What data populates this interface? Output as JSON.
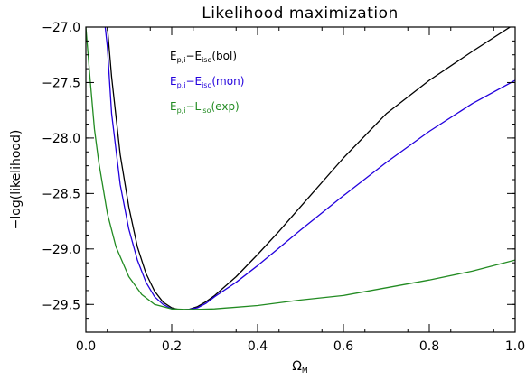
{
  "chart_data": {
    "type": "line",
    "title": "Likelihood maximization",
    "xlabel": "Ω",
    "xlabel_sub": "M",
    "ylabel": "−log(likelihood)",
    "xlim": [
      0.0,
      1.0
    ],
    "ylim": [
      -29.75,
      -27.0
    ],
    "xticks": [
      "0.0",
      "0.2",
      "0.4",
      "0.6",
      "0.8",
      "1.0"
    ],
    "yticks": [
      "−27.0",
      "−27.5",
      "−28.0",
      "−28.5",
      "−29.0",
      "−29.5"
    ],
    "grid": false,
    "legend_position": "top-left",
    "series": [
      {
        "name": "E_p,i − E_iso(bol)",
        "legend": {
          "base1": "E",
          "sub1": "p,i",
          "mid": "−E",
          "sub2": "iso",
          "tail": "(bol)"
        },
        "color": "#000000",
        "x": [
          0.05,
          0.06,
          0.08,
          0.1,
          0.12,
          0.14,
          0.16,
          0.18,
          0.2,
          0.22,
          0.24,
          0.26,
          0.28,
          0.3,
          0.35,
          0.4,
          0.45,
          0.5,
          0.6,
          0.7,
          0.8,
          0.9,
          1.0
        ],
        "y": [
          -27.0,
          -27.45,
          -28.15,
          -28.62,
          -28.98,
          -29.22,
          -29.38,
          -29.48,
          -29.53,
          -29.55,
          -29.545,
          -29.52,
          -29.475,
          -29.42,
          -29.25,
          -29.05,
          -28.84,
          -28.62,
          -28.18,
          -27.78,
          -27.48,
          -27.22,
          -26.97
        ]
      },
      {
        "name": "E_p,i − E_iso(mon)",
        "legend": {
          "base1": "E",
          "sub1": "p,i",
          "mid": "−E",
          "sub2": "iso",
          "tail": "(mon)"
        },
        "color": "#2200dd",
        "x": [
          0.045,
          0.05,
          0.06,
          0.08,
          0.1,
          0.12,
          0.14,
          0.16,
          0.18,
          0.2,
          0.22,
          0.24,
          0.26,
          0.28,
          0.3,
          0.35,
          0.4,
          0.45,
          0.5,
          0.6,
          0.7,
          0.8,
          0.9,
          1.0
        ],
        "y": [
          -27.0,
          -27.18,
          -27.78,
          -28.42,
          -28.82,
          -29.1,
          -29.3,
          -29.43,
          -29.5,
          -29.54,
          -29.55,
          -29.545,
          -29.53,
          -29.49,
          -29.43,
          -29.3,
          -29.15,
          -28.99,
          -28.83,
          -28.52,
          -28.22,
          -27.94,
          -27.69,
          -27.48
        ]
      },
      {
        "name": "E_p,i − L_iso(exp)",
        "legend": {
          "base1": "E",
          "sub1": "p,i",
          "mid": "−L",
          "sub2": "iso",
          "tail": "(exp)"
        },
        "color": "#228b22",
        "x": [
          0.0,
          0.01,
          0.02,
          0.03,
          0.05,
          0.07,
          0.1,
          0.13,
          0.16,
          0.2,
          0.23,
          0.26,
          0.3,
          0.4,
          0.5,
          0.6,
          0.7,
          0.8,
          0.9,
          1.0
        ],
        "y": [
          -27.0,
          -27.48,
          -27.92,
          -28.22,
          -28.68,
          -28.98,
          -29.25,
          -29.41,
          -29.5,
          -29.54,
          -29.545,
          -29.545,
          -29.54,
          -29.51,
          -29.46,
          -29.42,
          -29.35,
          -29.28,
          -29.2,
          -29.1
        ]
      }
    ]
  }
}
